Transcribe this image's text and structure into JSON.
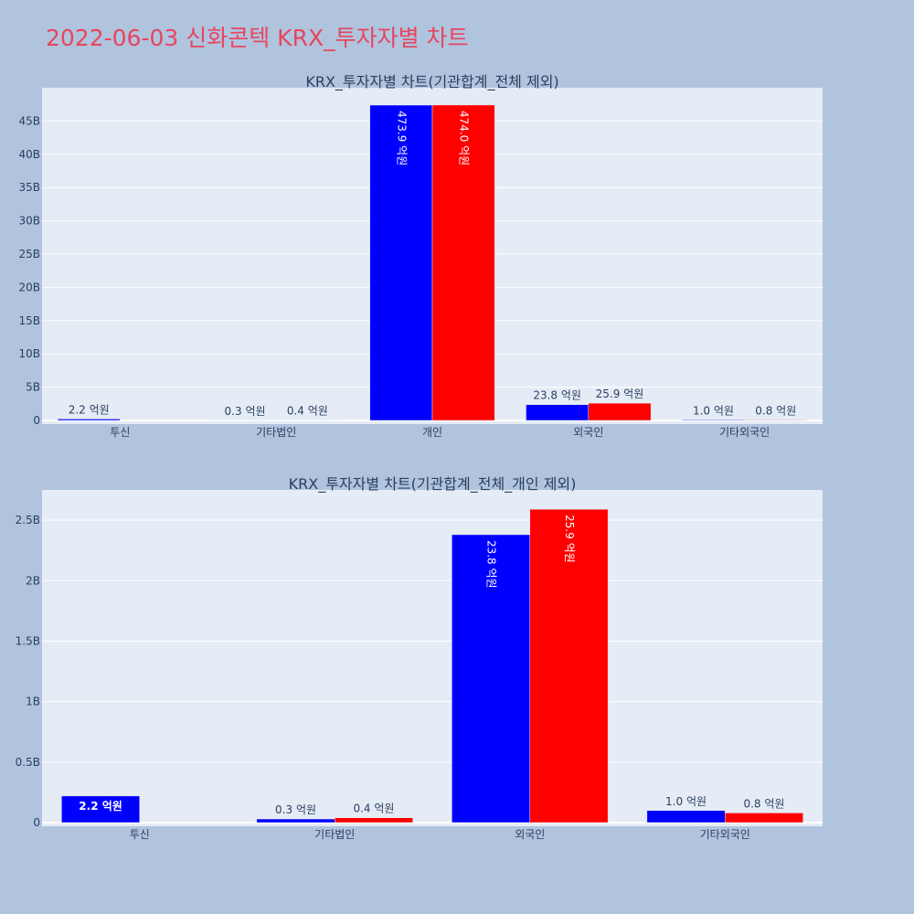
{
  "title": "2022-06-03 신화콘텍 KRX_투자자별 차트",
  "colors": {
    "background": "#b0c4de",
    "plot_bg": "#e5ecf6",
    "title": "#e8455f",
    "series_a": "#0000ff",
    "series_b": "#ff0000",
    "text": "#2a3f5f"
  },
  "chart_data": [
    {
      "type": "bar",
      "title": "KRX_투자자별 차트(기관합계_전체 제외)",
      "categories": [
        "투신",
        "기타법인",
        "개인",
        "외국인",
        "기타외국인"
      ],
      "ylim": [
        0,
        50
      ],
      "yticks": [
        0,
        5,
        10,
        15,
        20,
        25,
        30,
        35,
        40,
        45
      ],
      "ytick_labels": [
        "0",
        "5B",
        "10B",
        "15B",
        "20B",
        "25B",
        "30B",
        "35B",
        "40B",
        "45B"
      ],
      "grid": true,
      "series": [
        {
          "values": [
            0.22,
            0.03,
            47.39,
            2.38,
            0.1
          ],
          "labels": [
            "2.2 억원",
            "0.3 억원",
            "473.9 억원",
            "23.8 억원",
            "1.0 억원"
          ]
        },
        {
          "values": [
            0,
            0.04,
            47.4,
            2.59,
            0.08
          ],
          "labels": [
            "",
            "0.4 억원",
            "474.0 억원",
            "25.9 억원",
            "0.8 억원"
          ]
        }
      ]
    },
    {
      "type": "bar",
      "title": "KRX_투자자별 차트(기관합계_전체_개인 제외)",
      "categories": [
        "투신",
        "기타법인",
        "외국인",
        "기타외국인"
      ],
      "ylim": [
        0,
        2.75
      ],
      "yticks": [
        0,
        0.5,
        1,
        1.5,
        2,
        2.5
      ],
      "ytick_labels": [
        "0",
        "0.5B",
        "1B",
        "1.5B",
        "2B",
        "2.5B"
      ],
      "grid": true,
      "series": [
        {
          "values": [
            0.22,
            0.03,
            2.38,
            0.1
          ],
          "labels": [
            "2.2 억원",
            "0.3 억원",
            "23.8 억원",
            "1.0 억원"
          ]
        },
        {
          "values": [
            0,
            0.04,
            2.59,
            0.08
          ],
          "labels": [
            "",
            "0.4 억원",
            "25.9 억원",
            "0.8 억원"
          ]
        }
      ]
    }
  ]
}
